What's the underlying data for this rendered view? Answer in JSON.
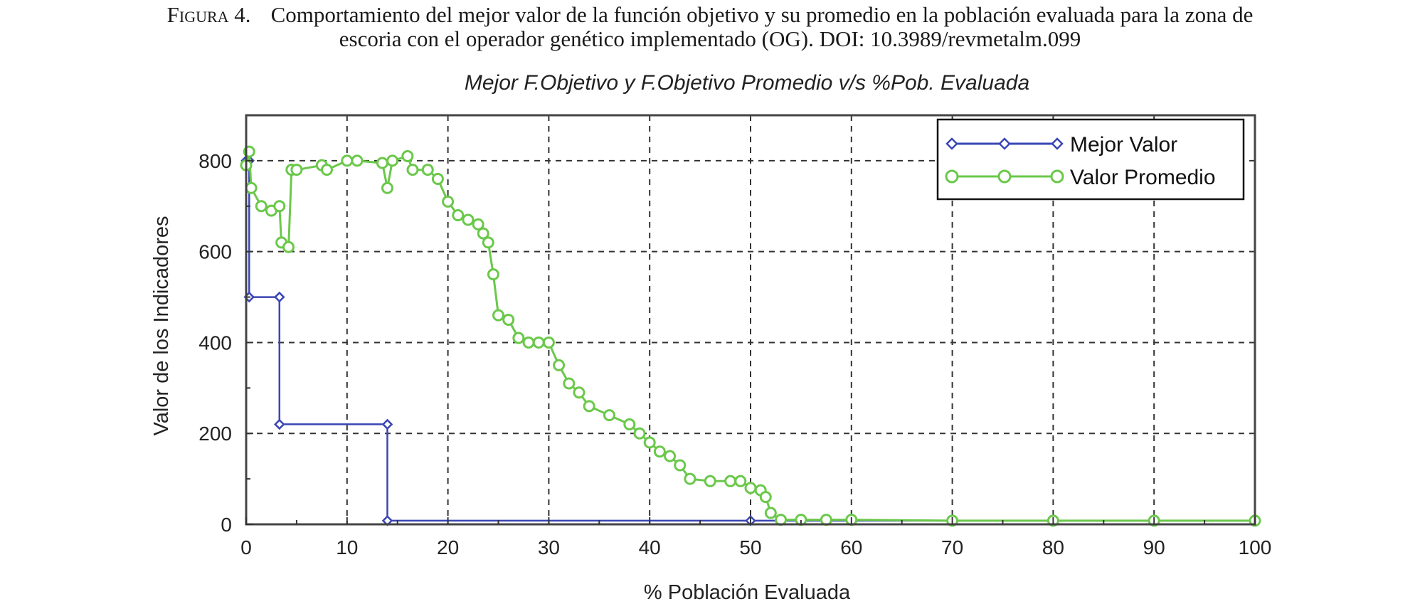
{
  "caption": {
    "label": "Figura 4.",
    "text_line1": "Comportamiento del mejor valor de la función objetivo y su promedio en la población evaluada para la zona de",
    "text_line2": "escoria con el operador genético implementado (OG). DOI: 10.3989/revmetalm.099"
  },
  "chart_data": {
    "type": "line",
    "title": "Mejor F.Objetivo y F.Objetivo Promedio v/s %Pob. Evaluada",
    "xlabel": "% Población Evaluada",
    "ylabel": "Valor de los Indicadores",
    "xlim": [
      0,
      100
    ],
    "ylim": [
      0,
      900
    ],
    "xticks": [
      0,
      10,
      20,
      30,
      40,
      50,
      60,
      70,
      80,
      90,
      100
    ],
    "yticks": [
      0,
      200,
      400,
      600,
      800
    ],
    "grid": true,
    "legend_position": "top-right",
    "series": [
      {
        "name": "Mejor Valor",
        "color": "#3a46b4",
        "marker": "diamond",
        "x": [
          0,
          0.3,
          0.3,
          3.3,
          3.3,
          14,
          14,
          50,
          100
        ],
        "y": [
          800,
          800,
          500,
          500,
          220,
          220,
          8,
          8,
          8
        ]
      },
      {
        "name": "Valor Promedio",
        "color": "#6ac84a",
        "marker": "circle",
        "x": [
          0,
          0.3,
          0.5,
          1.5,
          2.5,
          3.3,
          3.5,
          4.2,
          4.5,
          5,
          7.5,
          8,
          10,
          11,
          13.5,
          14,
          14.5,
          16,
          16.5,
          18,
          19,
          20,
          21,
          22,
          23,
          23.5,
          24,
          24.5,
          25,
          26,
          27,
          28,
          29,
          30,
          31,
          32,
          33,
          34,
          36,
          38,
          39,
          40,
          41,
          42,
          43,
          44,
          46,
          48,
          49,
          50,
          51,
          51.5,
          52,
          53,
          55,
          57.5,
          60,
          70,
          80,
          90,
          100
        ],
        "y": [
          790,
          820,
          740,
          700,
          690,
          700,
          620,
          610,
          780,
          780,
          790,
          780,
          800,
          800,
          795,
          740,
          800,
          810,
          780,
          780,
          760,
          710,
          680,
          670,
          660,
          640,
          620,
          550,
          460,
          450,
          410,
          400,
          400,
          400,
          350,
          310,
          290,
          260,
          240,
          220,
          200,
          180,
          160,
          150,
          130,
          100,
          95,
          95,
          95,
          80,
          75,
          60,
          25,
          10,
          10,
          10,
          10,
          8,
          8,
          8,
          8
        ]
      }
    ]
  }
}
